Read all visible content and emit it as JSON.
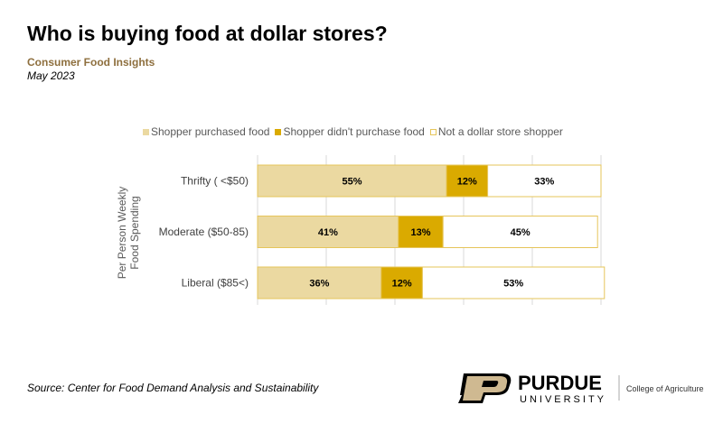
{
  "header": {
    "title": "Who is buying food at dollar stores?",
    "subtitle": "Consumer Food Insights",
    "date": "May 2023"
  },
  "footer": {
    "source": "Source:  Center for Food Demand Analysis and Sustainability",
    "logo_name": "PURDUE",
    "logo_sub": "UNIVERSITY",
    "college": "College of Agriculture"
  },
  "chart_data": {
    "type": "bar",
    "orientation": "horizontal-stacked-100",
    "ylabel": "Per Person Weekly Food Spending",
    "xlim": [
      0,
      100
    ],
    "grid": true,
    "legend_position": "top",
    "categories": [
      "Thrifty ( <$50)",
      "Moderate ($50-85)",
      "Liberal ($85<)"
    ],
    "series": [
      {
        "name": "Shopper purchased food",
        "color": "#ebd9a1",
        "values": [
          55,
          41,
          36
        ]
      },
      {
        "name": "Shopper didn't purchase food",
        "color": "#daaa00",
        "values": [
          12,
          13,
          12
        ]
      },
      {
        "name": "Not a dollar store shopper",
        "color": "#ffffff",
        "values": [
          33,
          45,
          53
        ]
      }
    ]
  }
}
